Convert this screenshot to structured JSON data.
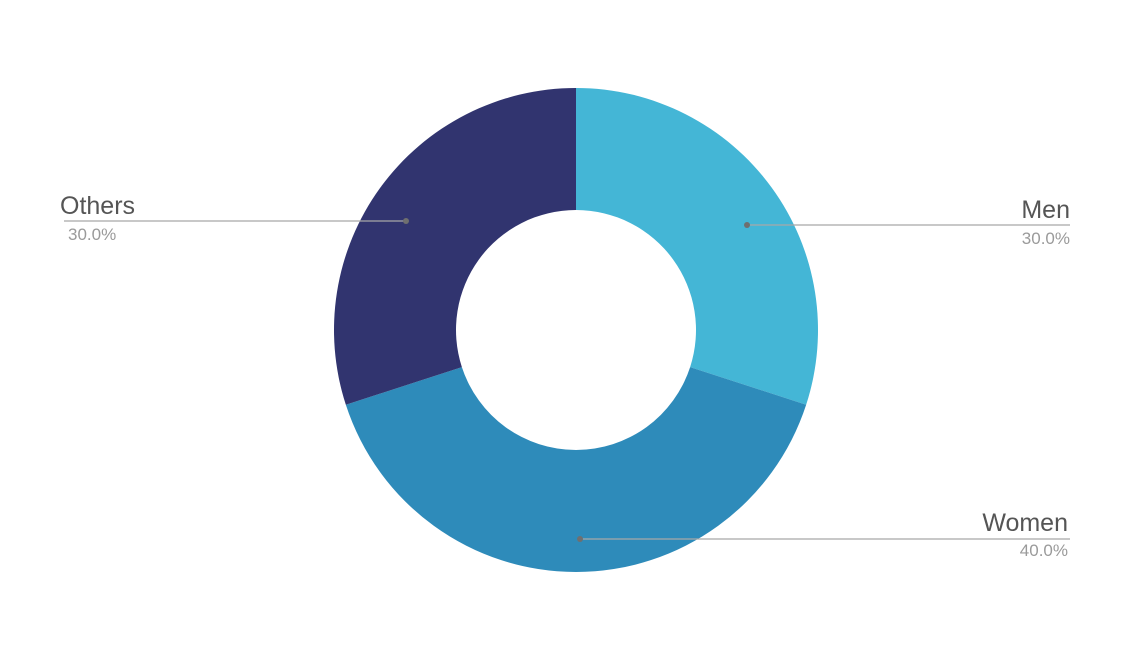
{
  "chart_data": {
    "type": "pie",
    "variant": "donut",
    "title": "",
    "categories": [
      "Men",
      "Women",
      "Others"
    ],
    "values": [
      30.0,
      40.0,
      30.0
    ],
    "value_labels": [
      "30.0%",
      "40.0%",
      "30.0%"
    ],
    "colors": [
      "#44b6d6",
      "#2e8bba",
      "#31346f"
    ],
    "legend": "none",
    "label_placement": "outside with leader lines"
  }
}
